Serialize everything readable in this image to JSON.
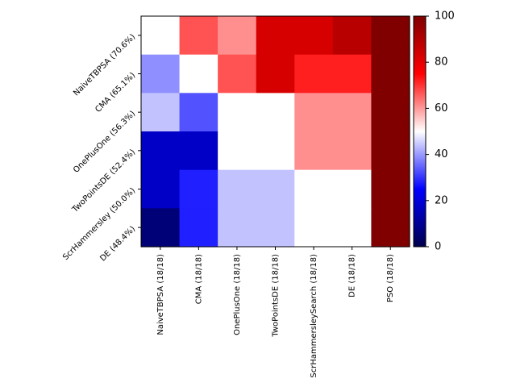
{
  "chart_data": {
    "type": "heatmap",
    "title": "",
    "xlabel": "",
    "ylabel": "",
    "x_labels": [
      "NaiveTBPSA (18/18)",
      "CMA (18/18)",
      "OnePlusOne (18/18)",
      "TwoPointsDE (18/18)",
      "ScrHammersleySearch (18/18)",
      "DE (18/18)",
      "PSO (18/18)"
    ],
    "y_labels": [
      "NaiveTBPSA (70.6%)",
      "CMA (65.1%)",
      "OnePlusOne (56.3%)",
      "TwoPointsDE (52.4%)",
      "ScrHammersley (50.0%)",
      "DE (48.4%)"
    ],
    "values": [
      [
        50,
        67,
        61,
        83,
        83,
        89,
        100
      ],
      [
        39,
        50,
        67,
        83,
        72,
        72,
        100
      ],
      [
        44,
        33,
        50,
        50,
        61,
        61,
        100
      ],
      [
        17,
        17,
        50,
        50,
        61,
        61,
        100
      ],
      [
        17,
        28,
        44,
        44,
        50,
        50,
        100
      ],
      [
        6,
        28,
        44,
        44,
        50,
        50,
        100
      ]
    ],
    "colormap": "seismic",
    "vmin": 0,
    "vmax": 100,
    "colorbar_ticks": [
      "0",
      "20",
      "40",
      "60",
      "80",
      "100"
    ]
  }
}
